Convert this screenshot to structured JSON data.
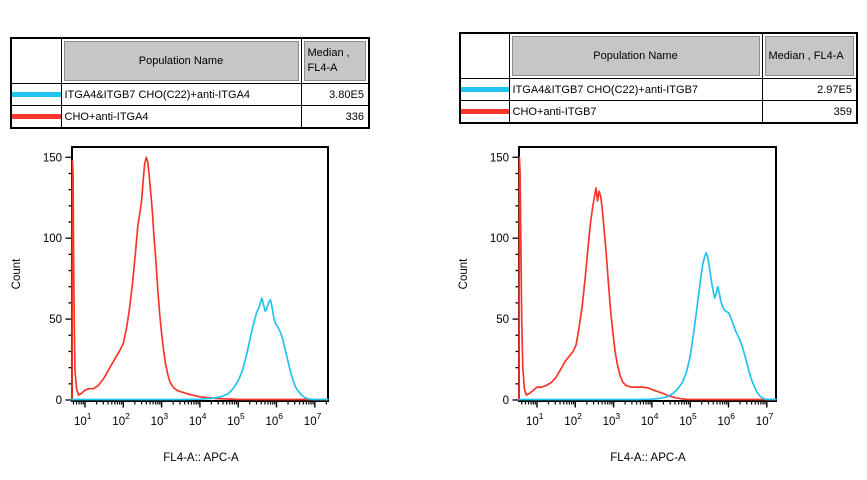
{
  "page": {
    "background": "#ffffff"
  },
  "colors": {
    "cyan": "#22c3ee",
    "red": "#f8362b",
    "table_header_gray": "#c6c6c6",
    "axis": "#000000"
  },
  "panels": [
    {
      "table": {
        "population_header": "Population Name",
        "median_header_lines": [
          "Median ,",
          "FL4-A"
        ],
        "rows": [
          {
            "swatch_color": "#22c3ee",
            "name": "ITGA4&ITGB7 CHO(C22)+anti-ITGA4",
            "median": "3.80E5"
          },
          {
            "swatch_color": "#f8362b",
            "name": "CHO+anti-ITGA4",
            "median": "336"
          }
        ]
      }
    },
    {
      "table": {
        "population_header": "Population Name",
        "median_header_lines": [
          "Median , FL4-A",
          ""
        ],
        "rows": [
          {
            "swatch_color": "#22c3ee",
            "name": "ITGA4&ITGB7 CHO(C22)+anti-ITGB7",
            "median": "2.97E5"
          },
          {
            "swatch_color": "#f8362b",
            "name": "CHO+anti-ITGB7",
            "median": "359"
          }
        ]
      }
    }
  ],
  "chart_data": [
    {
      "type": "area",
      "subtype": "flow-histogram-overlay",
      "panel": "left",
      "xlabel": "FL4-A:: APC-A",
      "ylabel": "Count",
      "x_scale": "log10",
      "x_tick_exponents": [
        1,
        2,
        3,
        4,
        5,
        6,
        7
      ],
      "x_range_log10": [
        0.66,
        7.34
      ],
      "yticks": [
        0,
        50,
        100,
        150
      ],
      "y_minor_step": 10,
      "ylim": [
        0,
        156
      ],
      "grid": false,
      "legend_position": "table-above",
      "series": [
        {
          "name": "CHO+anti-ITGA4",
          "color": "#f8362b",
          "median": "336",
          "points_log10x_count": [
            [
              0.66,
              0
            ],
            [
              0.67,
              148
            ],
            [
              0.69,
              140
            ],
            [
              0.7,
              95
            ],
            [
              0.72,
              45
            ],
            [
              0.74,
              18
            ],
            [
              0.78,
              7
            ],
            [
              0.83,
              3
            ],
            [
              0.9,
              4
            ],
            [
              1.0,
              6
            ],
            [
              1.1,
              7
            ],
            [
              1.22,
              7
            ],
            [
              1.35,
              9
            ],
            [
              1.48,
              13
            ],
            [
              1.6,
              18
            ],
            [
              1.72,
              23
            ],
            [
              1.82,
              27
            ],
            [
              1.92,
              31
            ],
            [
              2.0,
              35
            ],
            [
              2.08,
              44
            ],
            [
              2.16,
              56
            ],
            [
              2.24,
              72
            ],
            [
              2.32,
              92
            ],
            [
              2.38,
              108
            ],
            [
              2.44,
              117
            ],
            [
              2.48,
              124
            ],
            [
              2.52,
              136
            ],
            [
              2.56,
              146
            ],
            [
              2.6,
              150
            ],
            [
              2.64,
              147
            ],
            [
              2.68,
              138
            ],
            [
              2.72,
              127
            ],
            [
              2.76,
              116
            ],
            [
              2.8,
              102
            ],
            [
              2.85,
              86
            ],
            [
              2.9,
              68
            ],
            [
              2.95,
              53
            ],
            [
              3.0,
              41
            ],
            [
              3.05,
              31
            ],
            [
              3.1,
              23
            ],
            [
              3.16,
              16
            ],
            [
              3.22,
              11
            ],
            [
              3.3,
              8
            ],
            [
              3.4,
              6
            ],
            [
              3.52,
              5
            ],
            [
              3.65,
              4
            ],
            [
              3.8,
              3
            ],
            [
              4.0,
              2
            ],
            [
              4.2,
              1.5
            ],
            [
              4.4,
              1
            ],
            [
              4.7,
              0.6
            ],
            [
              5.0,
              0.4
            ],
            [
              5.6,
              0.3
            ],
            [
              6.5,
              0.3
            ],
            [
              7.34,
              0.3
            ]
          ]
        },
        {
          "name": "ITGA4&ITGB7 CHO(C22)+anti-ITGA4",
          "color": "#22c3ee",
          "median": "3.80E5",
          "points_log10x_count": [
            [
              0.66,
              0.3
            ],
            [
              2.0,
              0.3
            ],
            [
              3.5,
              0.3
            ],
            [
              4.0,
              0.5
            ],
            [
              4.3,
              1
            ],
            [
              4.55,
              2
            ],
            [
              4.75,
              4
            ],
            [
              4.9,
              8
            ],
            [
              5.02,
              13
            ],
            [
              5.12,
              19
            ],
            [
              5.22,
              28
            ],
            [
              5.32,
              39
            ],
            [
              5.4,
              47
            ],
            [
              5.48,
              54
            ],
            [
              5.54,
              57
            ],
            [
              5.58,
              60
            ],
            [
              5.62,
              63
            ],
            [
              5.66,
              59
            ],
            [
              5.7,
              55
            ],
            [
              5.74,
              56
            ],
            [
              5.79,
              60
            ],
            [
              5.84,
              62
            ],
            [
              5.88,
              58
            ],
            [
              5.93,
              51
            ],
            [
              5.98,
              47
            ],
            [
              6.04,
              45
            ],
            [
              6.1,
              42
            ],
            [
              6.16,
              38
            ],
            [
              6.22,
              32
            ],
            [
              6.28,
              26
            ],
            [
              6.35,
              19
            ],
            [
              6.42,
              13
            ],
            [
              6.5,
              8
            ],
            [
              6.58,
              5
            ],
            [
              6.66,
              3
            ],
            [
              6.74,
              1.5
            ],
            [
              6.84,
              0.6
            ],
            [
              6.95,
              0.3
            ],
            [
              7.34,
              0.3
            ]
          ]
        }
      ]
    },
    {
      "type": "area",
      "subtype": "flow-histogram-overlay",
      "panel": "right",
      "xlabel": "FL4-A:: APC-A",
      "ylabel": "Count",
      "x_scale": "log10",
      "x_tick_exponents": [
        1,
        2,
        3,
        4,
        5,
        6,
        7
      ],
      "x_range_log10": [
        0.53,
        7.24
      ],
      "yticks": [
        0,
        50,
        100,
        150
      ],
      "y_minor_step": 10,
      "ylim": [
        0,
        156
      ],
      "grid": false,
      "legend_position": "table-above",
      "series": [
        {
          "name": "CHO+anti-ITGB7",
          "color": "#f8362b",
          "median": "359",
          "points_log10x_count": [
            [
              0.53,
              0
            ],
            [
              0.54,
              150
            ],
            [
              0.56,
              140
            ],
            [
              0.58,
              95
            ],
            [
              0.6,
              50
            ],
            [
              0.63,
              20
            ],
            [
              0.67,
              7
            ],
            [
              0.72,
              3
            ],
            [
              0.8,
              4
            ],
            [
              0.9,
              6
            ],
            [
              1.0,
              8
            ],
            [
              1.12,
              8
            ],
            [
              1.25,
              9
            ],
            [
              1.38,
              11
            ],
            [
              1.5,
              14
            ],
            [
              1.62,
              19
            ],
            [
              1.74,
              24
            ],
            [
              1.84,
              27
            ],
            [
              1.94,
              30
            ],
            [
              2.02,
              34
            ],
            [
              2.1,
              45
            ],
            [
              2.18,
              58
            ],
            [
              2.26,
              76
            ],
            [
              2.34,
              96
            ],
            [
              2.4,
              110
            ],
            [
              2.46,
              120
            ],
            [
              2.5,
              126
            ],
            [
              2.54,
              131
            ],
            [
              2.58,
              123
            ],
            [
              2.62,
              129
            ],
            [
              2.66,
              126
            ],
            [
              2.7,
              119
            ],
            [
              2.75,
              106
            ],
            [
              2.8,
              93
            ],
            [
              2.86,
              74
            ],
            [
              2.92,
              56
            ],
            [
              2.98,
              42
            ],
            [
              3.04,
              30
            ],
            [
              3.1,
              22
            ],
            [
              3.17,
              15
            ],
            [
              3.24,
              11
            ],
            [
              3.32,
              9
            ],
            [
              3.45,
              8
            ],
            [
              3.6,
              8
            ],
            [
              3.75,
              8
            ],
            [
              3.9,
              7.5
            ],
            [
              4.05,
              6
            ],
            [
              4.18,
              5
            ],
            [
              4.3,
              4
            ],
            [
              4.45,
              2.5
            ],
            [
              4.6,
              1.5
            ],
            [
              4.75,
              0.8
            ],
            [
              4.9,
              0.4
            ],
            [
              5.5,
              0.3
            ],
            [
              6.5,
              0.3
            ],
            [
              7.24,
              0.3
            ]
          ]
        },
        {
          "name": "ITGA4&ITGB7 CHO(C22)+anti-ITGB7",
          "color": "#22c3ee",
          "median": "2.97E5",
          "points_log10x_count": [
            [
              0.53,
              0.3
            ],
            [
              2.0,
              0.3
            ],
            [
              3.6,
              0.3
            ],
            [
              4.0,
              0.5
            ],
            [
              4.2,
              1
            ],
            [
              4.4,
              2
            ],
            [
              4.55,
              4
            ],
            [
              4.68,
              7
            ],
            [
              4.8,
              11
            ],
            [
              4.9,
              17
            ],
            [
              5.0,
              27
            ],
            [
              5.08,
              40
            ],
            [
              5.15,
              52
            ],
            [
              5.22,
              65
            ],
            [
              5.28,
              76
            ],
            [
              5.33,
              84
            ],
            [
              5.38,
              89
            ],
            [
              5.42,
              91
            ],
            [
              5.46,
              88
            ],
            [
              5.5,
              82
            ],
            [
              5.55,
              74
            ],
            [
              5.6,
              67
            ],
            [
              5.64,
              63
            ],
            [
              5.68,
              66
            ],
            [
              5.72,
              70
            ],
            [
              5.76,
              66
            ],
            [
              5.8,
              61
            ],
            [
              5.86,
              57
            ],
            [
              5.92,
              55
            ],
            [
              6.0,
              54
            ],
            [
              6.06,
              51
            ],
            [
              6.12,
              47
            ],
            [
              6.18,
              43
            ],
            [
              6.24,
              40
            ],
            [
              6.3,
              37
            ],
            [
              6.36,
              33
            ],
            [
              6.42,
              28
            ],
            [
              6.5,
              21
            ],
            [
              6.58,
              14
            ],
            [
              6.66,
              9
            ],
            [
              6.74,
              5
            ],
            [
              6.82,
              2.5
            ],
            [
              6.9,
              1
            ],
            [
              6.98,
              0.4
            ],
            [
              7.1,
              0.3
            ],
            [
              7.24,
              0.3
            ]
          ]
        }
      ]
    }
  ]
}
